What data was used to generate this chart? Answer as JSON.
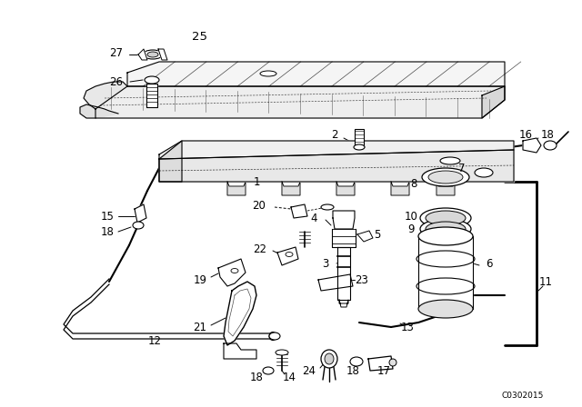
{
  "background_color": "#ffffff",
  "diagram_code": "C0302015",
  "fig_width": 6.4,
  "fig_height": 4.48,
  "dpi": 100,
  "line_color": "#000000",
  "label_fontsize": 8.5,
  "label_color": "#000000"
}
